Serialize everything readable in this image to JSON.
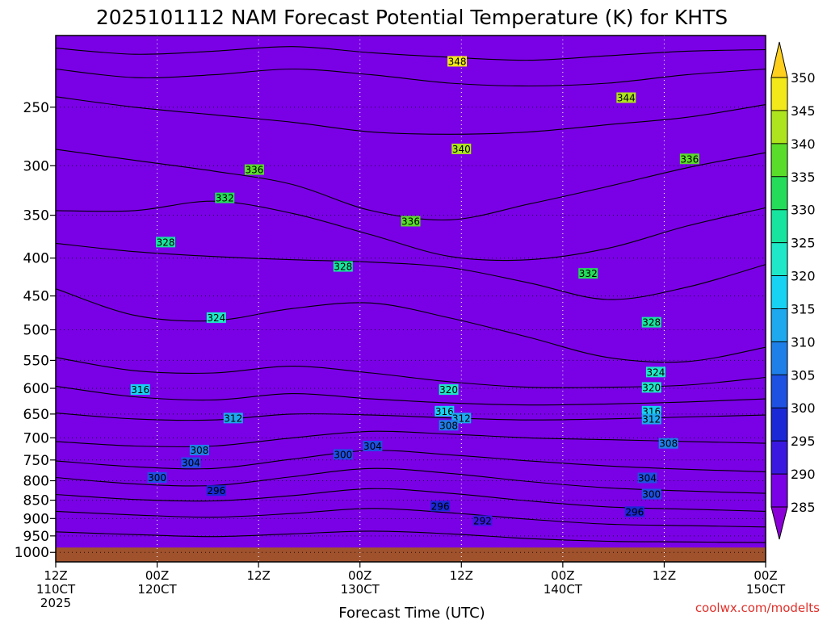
{
  "chart_data": {
    "type": "contour",
    "title": "2025101112 NAM Forecast Potential Temperature (K) for KHTS",
    "xlabel": "Forecast Time (UTC)",
    "ylabel": "",
    "credit": "coolwx.com/modelts",
    "y_ticks": [
      {
        "p": 250,
        "label": "250"
      },
      {
        "p": 300,
        "label": "300"
      },
      {
        "p": 350,
        "label": "350"
      },
      {
        "p": 400,
        "label": "400"
      },
      {
        "p": 450,
        "label": "450"
      },
      {
        "p": 500,
        "label": "500"
      },
      {
        "p": 550,
        "label": "550"
      },
      {
        "p": 600,
        "label": "600"
      },
      {
        "p": 650,
        "label": "650"
      },
      {
        "p": 700,
        "label": "700"
      },
      {
        "p": 750,
        "label": "750"
      },
      {
        "p": 800,
        "label": "800"
      },
      {
        "p": 850,
        "label": "850"
      },
      {
        "p": 900,
        "label": "900"
      },
      {
        "p": 950,
        "label": "950"
      },
      {
        "p": 1000,
        "label": "1000"
      }
    ],
    "ylim_hpa": [
      200,
      1030
    ],
    "surface_pressure_hpa": 985,
    "xlim_hours": [
      0,
      84
    ],
    "x_ticks": [
      {
        "h": 0,
        "line1": "12Z",
        "line2": "110CT",
        "line3": "2025"
      },
      {
        "h": 12,
        "line1": "00Z",
        "line2": "120CT",
        "line3": ""
      },
      {
        "h": 24,
        "line1": "12Z",
        "line2": "",
        "line3": ""
      },
      {
        "h": 36,
        "line1": "00Z",
        "line2": "130CT",
        "line3": ""
      },
      {
        "h": 48,
        "line1": "12Z",
        "line2": "",
        "line3": ""
      },
      {
        "h": 60,
        "line1": "00Z",
        "line2": "140CT",
        "line3": ""
      },
      {
        "h": 72,
        "line1": "12Z",
        "line2": "",
        "line3": ""
      },
      {
        "h": 84,
        "line1": "00Z",
        "line2": "150CT",
        "line3": ""
      }
    ],
    "colorbar": {
      "min": 285,
      "max": 350,
      "step": 5,
      "labels": [
        "350",
        "345",
        "340",
        "335",
        "330",
        "325",
        "320",
        "315",
        "310",
        "305",
        "300",
        "295",
        "290",
        "285"
      ],
      "colors": [
        {
          "lo": 280,
          "hi": 285,
          "color": "#8c00d8"
        },
        {
          "lo": 285,
          "hi": 290,
          "color": "#7a00e6"
        },
        {
          "lo": 290,
          "hi": 295,
          "color": "#3a18e0"
        },
        {
          "lo": 295,
          "hi": 300,
          "color": "#1a28d6"
        },
        {
          "lo": 300,
          "hi": 305,
          "color": "#1e50e2"
        },
        {
          "lo": 305,
          "hi": 310,
          "color": "#1f7fe8"
        },
        {
          "lo": 310,
          "hi": 315,
          "color": "#1ea8ee"
        },
        {
          "lo": 315,
          "hi": 320,
          "color": "#17d2f2"
        },
        {
          "lo": 320,
          "hi": 325,
          "color": "#1ee8c8"
        },
        {
          "lo": 325,
          "hi": 330,
          "color": "#17e49e"
        },
        {
          "lo": 330,
          "hi": 335,
          "color": "#25dc5a"
        },
        {
          "lo": 335,
          "hi": 340,
          "color": "#5add2a"
        },
        {
          "lo": 340,
          "hi": 345,
          "color": "#aee41e"
        },
        {
          "lo": 345,
          "hi": 350,
          "color": "#f2e81a"
        },
        {
          "lo": 350,
          "hi": 360,
          "color": "#ffcf1e"
        }
      ]
    },
    "contour_interval_k": 2,
    "isentropes": [
      {
        "theta": 348,
        "p": [
          208,
          212,
          210,
          207,
          211,
          214,
          216,
          213,
          210,
          209
        ]
      },
      {
        "theta": 344,
        "p": [
          222,
          228,
          226,
          222,
          226,
          232,
          234,
          232,
          226,
          222
        ]
      },
      {
        "theta": 340,
        "p": [
          242,
          250,
          256,
          262,
          270,
          272,
          270,
          264,
          258,
          248
        ]
      },
      {
        "theta": 336,
        "p": [
          285,
          295,
          305,
          318,
          345,
          355,
          338,
          320,
          302,
          288
        ]
      },
      {
        "theta": 332,
        "p": [
          345,
          345,
          335,
          348,
          372,
          398,
          402,
          388,
          362,
          342
        ]
      },
      {
        "theta": 328,
        "p": [
          382,
          392,
          398,
          402,
          405,
          412,
          432,
          455,
          438,
          408
        ]
      },
      {
        "theta": 324,
        "p": [
          440,
          478,
          486,
          468,
          460,
          482,
          512,
          545,
          552,
          528
        ]
      },
      {
        "theta": 320,
        "p": [
          545,
          568,
          572,
          560,
          572,
          588,
          598,
          598,
          594,
          580
        ]
      },
      {
        "theta": 316,
        "p": [
          596,
          616,
          622,
          610,
          620,
          628,
          632,
          630,
          626,
          620
        ]
      },
      {
        "theta": 312,
        "p": [
          648,
          660,
          662,
          650,
          652,
          658,
          662,
          660,
          656,
          652
        ]
      },
      {
        "theta": 308,
        "p": [
          708,
          718,
          718,
          700,
          686,
          692,
          700,
          704,
          708,
          712
        ]
      },
      {
        "theta": 304,
        "p": [
          752,
          766,
          770,
          748,
          728,
          738,
          752,
          764,
          772,
          778
        ]
      },
      {
        "theta": 300,
        "p": [
          792,
          808,
          812,
          790,
          770,
          782,
          802,
          818,
          826,
          832
        ]
      },
      {
        "theta": 296,
        "p": [
          835,
          848,
          852,
          838,
          820,
          832,
          852,
          868,
          874,
          880
        ]
      },
      {
        "theta": 292,
        "p": [
          880,
          890,
          896,
          886,
          872,
          884,
          902,
          916,
          920,
          924
        ]
      },
      {
        "theta": 288,
        "p": [
          938,
          946,
          952,
          944,
          936,
          944,
          958,
          966,
          968,
          970
        ]
      }
    ],
    "contour_labels": [
      {
        "text": "348",
        "h": 47.5,
        "p": 217
      },
      {
        "text": "344",
        "h": 67.5,
        "p": 243
      },
      {
        "text": "340",
        "h": 48.0,
        "p": 285
      },
      {
        "text": "336",
        "h": 23.5,
        "p": 304
      },
      {
        "text": "336",
        "h": 42.0,
        "p": 357
      },
      {
        "text": "336",
        "h": 75.0,
        "p": 294
      },
      {
        "text": "332",
        "h": 20.0,
        "p": 332
      },
      {
        "text": "332",
        "h": 63.0,
        "p": 420
      },
      {
        "text": "328",
        "h": 13.0,
        "p": 381
      },
      {
        "text": "328",
        "h": 34.0,
        "p": 411
      },
      {
        "text": "328",
        "h": 70.5,
        "p": 489
      },
      {
        "text": "324",
        "h": 19.0,
        "p": 482
      },
      {
        "text": "324",
        "h": 71.0,
        "p": 571
      },
      {
        "text": "320",
        "h": 46.5,
        "p": 603
      },
      {
        "text": "320",
        "h": 70.5,
        "p": 599
      },
      {
        "text": "316",
        "h": 10.0,
        "p": 603
      },
      {
        "text": "316",
        "h": 46.0,
        "p": 645
      },
      {
        "text": "316",
        "h": 70.5,
        "p": 645
      },
      {
        "text": "312",
        "h": 21.0,
        "p": 659
      },
      {
        "text": "312",
        "h": 48.0,
        "p": 659
      },
      {
        "text": "312",
        "h": 70.5,
        "p": 661
      },
      {
        "text": "308",
        "h": 17.0,
        "p": 728
      },
      {
        "text": "308",
        "h": 46.5,
        "p": 674
      },
      {
        "text": "308",
        "h": 72.5,
        "p": 713
      },
      {
        "text": "304",
        "h": 16.0,
        "p": 757
      },
      {
        "text": "304",
        "h": 37.5,
        "p": 719
      },
      {
        "text": "304",
        "h": 70.0,
        "p": 794
      },
      {
        "text": "300",
        "h": 12.0,
        "p": 793
      },
      {
        "text": "300",
        "h": 34.0,
        "p": 738
      },
      {
        "text": "300",
        "h": 70.5,
        "p": 835
      },
      {
        "text": "296",
        "h": 19.0,
        "p": 826
      },
      {
        "text": "296",
        "h": 45.5,
        "p": 867
      },
      {
        "text": "296",
        "h": 68.5,
        "p": 882
      },
      {
        "text": "292",
        "h": 50.5,
        "p": 907
      }
    ]
  }
}
